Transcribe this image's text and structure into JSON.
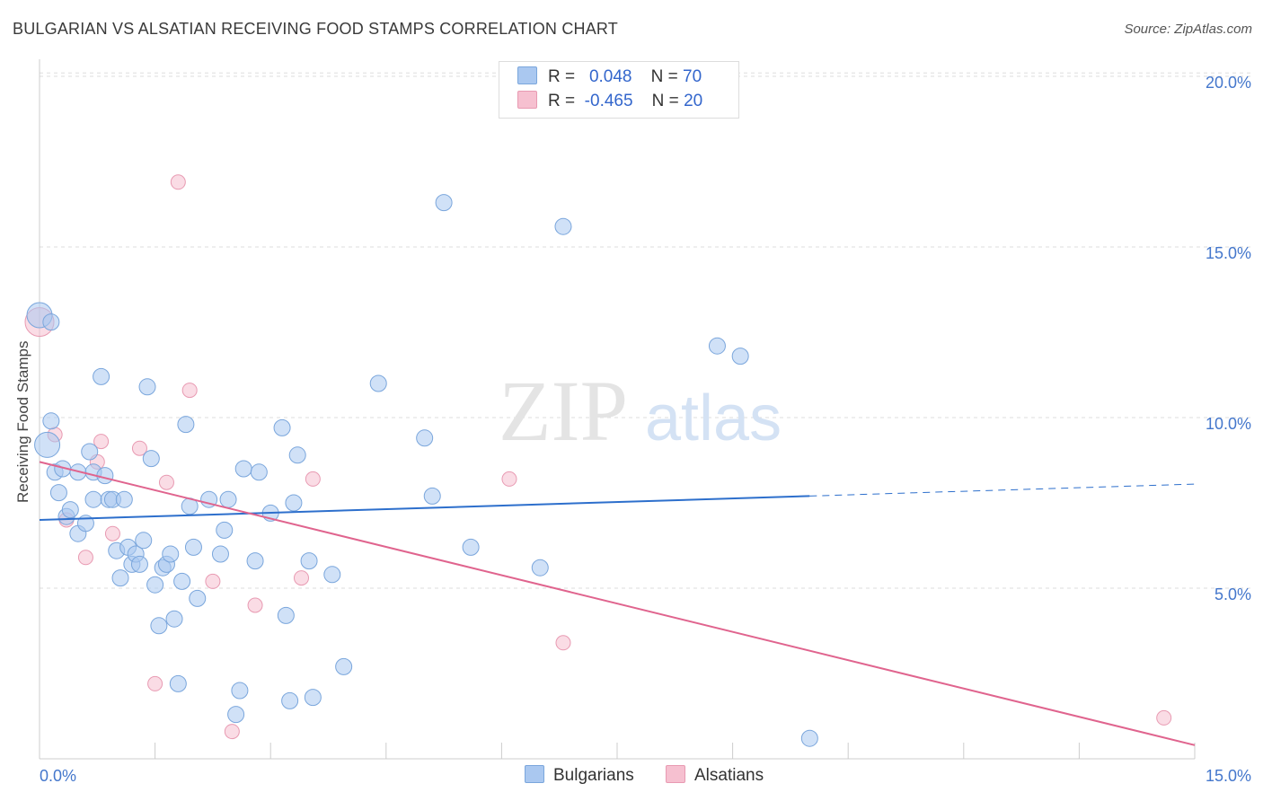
{
  "title": "BULGARIAN VS ALSATIAN RECEIVING FOOD STAMPS CORRELATION CHART",
  "source": "Source: ZipAtlas.com",
  "watermark": {
    "zip": "ZIP",
    "atlas": "atlas"
  },
  "legend": {
    "bulgarians": {
      "r_label": "R =",
      "r_value": "0.048",
      "n_label": "N =",
      "n_value": "70"
    },
    "alsatians": {
      "r_label": "R =",
      "r_value": "-0.465",
      "n_label": "N =",
      "n_value": "20"
    }
  },
  "bottom_legend": {
    "bulgarians": "Bulgarians",
    "alsatians": "Alsatians"
  },
  "colors": {
    "blue_fill": "#aac8f0",
    "blue_stroke": "#7aa6dc",
    "blue_line": "#2d6fcc",
    "pink_fill": "#f6c0d0",
    "pink_stroke": "#e89ab2",
    "pink_line": "#e0648e",
    "tick_text": "#4477cc",
    "grid": "#dddddd"
  },
  "chart_data": {
    "type": "scatter",
    "title": "BULGARIAN VS ALSATIAN RECEIVING FOOD STAMPS CORRELATION CHART",
    "xlabel": "",
    "ylabel": "Receiving Food Stamps",
    "xlim": [
      0,
      15
    ],
    "ylim": [
      0,
      20.5
    ],
    "x_tick_labels": [
      "0.0%",
      "15.0%"
    ],
    "y_ticks": [
      5,
      10,
      15,
      20
    ],
    "y_tick_labels": [
      "5.0%",
      "10.0%",
      "15.0%",
      "20.0%"
    ],
    "series": [
      {
        "name": "Bulgarians",
        "r": 0.048,
        "n": 70,
        "trend": {
          "x0": 0,
          "y0": 7.0,
          "x1": 10.0,
          "y1": 7.7,
          "dashed_to_x": 15.0,
          "dashed_to_y": 8.05
        },
        "points": [
          {
            "x": 0.0,
            "y": 13.0,
            "big": true
          },
          {
            "x": 0.1,
            "y": 9.2,
            "big": true
          },
          {
            "x": 0.15,
            "y": 9.9
          },
          {
            "x": 0.2,
            "y": 8.4
          },
          {
            "x": 0.25,
            "y": 7.8
          },
          {
            "x": 0.3,
            "y": 8.5
          },
          {
            "x": 0.35,
            "y": 7.1
          },
          {
            "x": 0.4,
            "y": 7.3
          },
          {
            "x": 0.5,
            "y": 8.4
          },
          {
            "x": 0.5,
            "y": 6.6
          },
          {
            "x": 0.6,
            "y": 6.9
          },
          {
            "x": 0.65,
            "y": 9.0
          },
          {
            "x": 0.7,
            "y": 8.4
          },
          {
            "x": 0.8,
            "y": 11.2
          },
          {
            "x": 0.7,
            "y": 7.6
          },
          {
            "x": 0.85,
            "y": 8.3
          },
          {
            "x": 0.9,
            "y": 7.6
          },
          {
            "x": 0.95,
            "y": 7.6
          },
          {
            "x": 1.0,
            "y": 6.1
          },
          {
            "x": 1.05,
            "y": 5.3
          },
          {
            "x": 1.1,
            "y": 7.6
          },
          {
            "x": 1.15,
            "y": 6.2
          },
          {
            "x": 1.2,
            "y": 5.7
          },
          {
            "x": 1.25,
            "y": 6.0
          },
          {
            "x": 1.3,
            "y": 5.7
          },
          {
            "x": 1.35,
            "y": 6.4
          },
          {
            "x": 1.4,
            "y": 10.9
          },
          {
            "x": 1.45,
            "y": 8.8
          },
          {
            "x": 1.5,
            "y": 5.1
          },
          {
            "x": 1.55,
            "y": 3.9
          },
          {
            "x": 1.6,
            "y": 5.6
          },
          {
            "x": 1.65,
            "y": 5.7
          },
          {
            "x": 1.7,
            "y": 6.0
          },
          {
            "x": 1.75,
            "y": 4.1
          },
          {
            "x": 1.8,
            "y": 2.2
          },
          {
            "x": 1.85,
            "y": 5.2
          },
          {
            "x": 1.9,
            "y": 9.8
          },
          {
            "x": 1.95,
            "y": 7.4
          },
          {
            "x": 2.0,
            "y": 6.2
          },
          {
            "x": 2.05,
            "y": 4.7
          },
          {
            "x": 2.2,
            "y": 7.6
          },
          {
            "x": 2.35,
            "y": 6.0
          },
          {
            "x": 2.4,
            "y": 6.7
          },
          {
            "x": 2.45,
            "y": 7.6
          },
          {
            "x": 2.55,
            "y": 1.3
          },
          {
            "x": 2.6,
            "y": 2.0
          },
          {
            "x": 2.65,
            "y": 8.5
          },
          {
            "x": 2.8,
            "y": 5.8
          },
          {
            "x": 2.85,
            "y": 8.4
          },
          {
            "x": 3.0,
            "y": 7.2
          },
          {
            "x": 3.15,
            "y": 9.7
          },
          {
            "x": 3.2,
            "y": 4.2
          },
          {
            "x": 3.25,
            "y": 1.7
          },
          {
            "x": 3.3,
            "y": 7.5
          },
          {
            "x": 3.35,
            "y": 8.9
          },
          {
            "x": 3.5,
            "y": 5.8
          },
          {
            "x": 3.55,
            "y": 1.8
          },
          {
            "x": 3.8,
            "y": 5.4
          },
          {
            "x": 3.95,
            "y": 2.7
          },
          {
            "x": 4.4,
            "y": 11.0
          },
          {
            "x": 5.0,
            "y": 9.4
          },
          {
            "x": 5.1,
            "y": 7.7
          },
          {
            "x": 5.25,
            "y": 16.3
          },
          {
            "x": 5.6,
            "y": 6.2
          },
          {
            "x": 6.5,
            "y": 5.6
          },
          {
            "x": 6.8,
            "y": 15.6
          },
          {
            "x": 8.8,
            "y": 12.1
          },
          {
            "x": 9.1,
            "y": 11.8
          },
          {
            "x": 10.0,
            "y": 0.6
          },
          {
            "x": 0.15,
            "y": 12.8
          }
        ]
      },
      {
        "name": "Alsatians",
        "r": -0.465,
        "n": 20,
        "trend": {
          "x0": 0,
          "y0": 8.7,
          "x1": 15.0,
          "y1": 0.4
        },
        "points": [
          {
            "x": 0.0,
            "y": 12.8,
            "big": true
          },
          {
            "x": 0.2,
            "y": 9.5
          },
          {
            "x": 0.35,
            "y": 7.0
          },
          {
            "x": 0.6,
            "y": 5.9
          },
          {
            "x": 0.75,
            "y": 8.7
          },
          {
            "x": 0.8,
            "y": 9.3
          },
          {
            "x": 0.95,
            "y": 6.6
          },
          {
            "x": 1.3,
            "y": 9.1
          },
          {
            "x": 1.5,
            "y": 2.2
          },
          {
            "x": 1.65,
            "y": 8.1
          },
          {
            "x": 1.8,
            "y": 16.9
          },
          {
            "x": 1.95,
            "y": 10.8
          },
          {
            "x": 2.25,
            "y": 5.2
          },
          {
            "x": 2.5,
            "y": 0.8
          },
          {
            "x": 2.8,
            "y": 4.5
          },
          {
            "x": 3.4,
            "y": 5.3
          },
          {
            "x": 3.55,
            "y": 8.2
          },
          {
            "x": 6.1,
            "y": 8.2
          },
          {
            "x": 6.8,
            "y": 3.4
          },
          {
            "x": 14.6,
            "y": 1.2
          }
        ]
      }
    ]
  }
}
